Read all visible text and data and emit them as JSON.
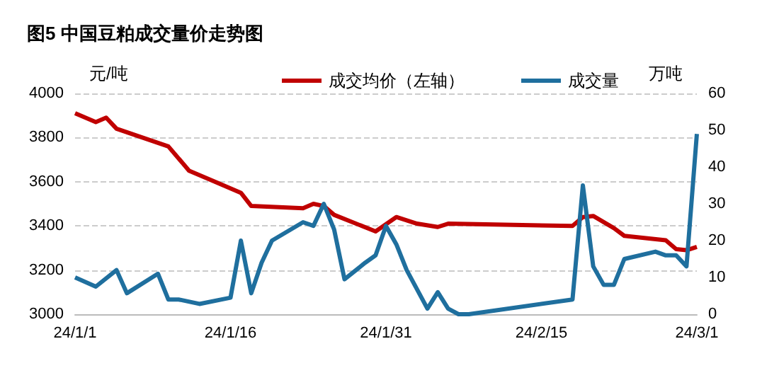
{
  "chart_data": {
    "type": "line",
    "title": "图5 中国豆粕成交量价走势图",
    "ylabel": "元/吨",
    "y2label": "万吨",
    "xlim": [
      "--01-01",
      "--03-01"
    ],
    "xticks": [
      {
        "value": "--01-01",
        "label": "24/1/1"
      },
      {
        "value": "--01-16",
        "label": "24/1/16"
      },
      {
        "value": "--01-31",
        "label": "24/1/31"
      },
      {
        "value": "--02-15",
        "label": "24/2/15"
      },
      {
        "value": "--03-01",
        "label": "24/3/1"
      }
    ],
    "ylim": [
      3000,
      4000
    ],
    "yticks": [
      3000,
      3200,
      3400,
      3600,
      3800,
      4000
    ],
    "y2lim": [
      0,
      60
    ],
    "y2ticks": [
      0,
      10,
      20,
      30,
      40,
      50,
      60
    ],
    "grid": "y",
    "legend": "top right",
    "marker": "none",
    "line_style": "solid",
    "series": [
      {
        "name": "成交均价（左轴）",
        "color": "#c00000",
        "x": [
          "--01-01",
          "--01-03",
          "--01-04",
          "--01-05",
          "--01-10",
          "--01-12",
          "--01-17",
          "--01-18",
          "--01-23",
          "--01-24",
          "--01-25",
          "--01-26",
          "--01-30",
          "--02-01",
          "--02-03",
          "--02-05",
          "--02-06",
          "--02-18",
          "--02-19",
          "--02-20",
          "--02-22",
          "--02-23",
          "--02-27",
          "--02-28",
          "--02-29",
          "--03-01"
        ],
        "values": [
          3910,
          3870,
          3890,
          3840,
          3760,
          3650,
          3550,
          3490,
          3480,
          3500,
          3490,
          3450,
          3375,
          3440,
          3410,
          3395,
          3410,
          3400,
          3440,
          3445,
          3390,
          3355,
          3335,
          3295,
          3290,
          3305
        ]
      },
      {
        "name": "成交量",
        "color": "#1f6f9e",
        "axis": "y2",
        "x": [
          "--01-01",
          "--01-03",
          "--01-05",
          "--01-06",
          "--01-09",
          "--01-10",
          "--01-11",
          "--01-13",
          "--01-16",
          "--01-17",
          "--01-18",
          "--01-19",
          "--01-20",
          "--01-23",
          "--01-24",
          "--01-25",
          "--01-26",
          "--01-27",
          "--01-29",
          "--01-30",
          "--01-31",
          "--02-01",
          "--02-02",
          "--02-04",
          "--02-05",
          "--02-06",
          "--02-07",
          "--02-08",
          "--02-18",
          "--02-19",
          "--02-20",
          "--02-21",
          "--02-22",
          "--02-23",
          "--02-26",
          "--02-27",
          "--02-28",
          "--02-29",
          "--03-01"
        ],
        "values": [
          10,
          7.5,
          12,
          5.7,
          11,
          4,
          4,
          2.8,
          4.5,
          20,
          5.7,
          14,
          20,
          25,
          24,
          30,
          23,
          9.5,
          14,
          16,
          24,
          19,
          12,
          1.5,
          6,
          1.5,
          0,
          0,
          4,
          35,
          13,
          8,
          8,
          15,
          17,
          16,
          16,
          13,
          49
        ]
      }
    ]
  }
}
